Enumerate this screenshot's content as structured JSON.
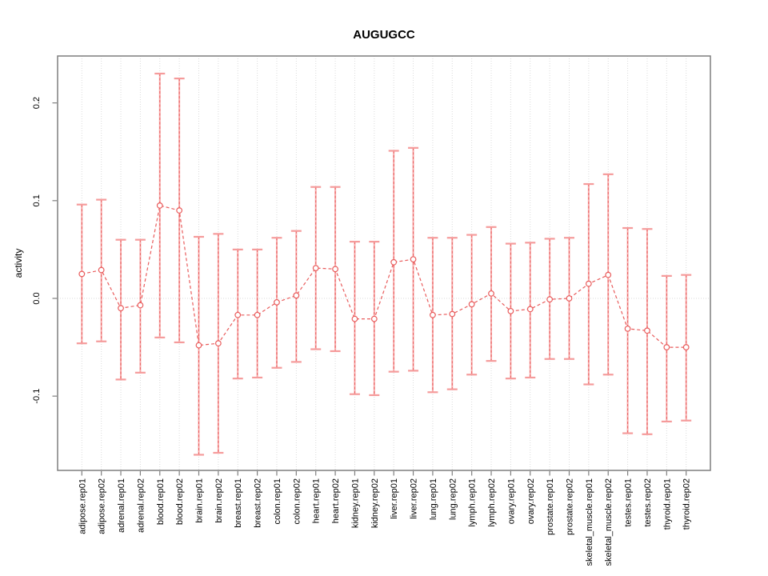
{
  "chart_data": {
    "type": "line",
    "title": "AUGUGCC",
    "xlabel": "",
    "ylabel": "activity",
    "categories": [
      "adipose.rep01",
      "adipose.rep02",
      "adrenal.rep01",
      "adrenal.rep02",
      "blood.rep01",
      "blood.rep02",
      "brain.rep01",
      "brain.rep02",
      "breast.rep01",
      "breast.rep02",
      "colon.rep01",
      "colon.rep02",
      "heart.rep01",
      "heart.rep02",
      "kidney.rep01",
      "kidney.rep02",
      "liver.rep01",
      "liver.rep02",
      "lung.rep01",
      "lung.rep02",
      "lymph.rep01",
      "lymph.rep02",
      "ovary.rep01",
      "ovary.rep02",
      "prostate.rep01",
      "prostate.rep02",
      "skeletal_muscle.rep01",
      "skeletal_muscle.rep02",
      "testes.rep01",
      "testes.rep02",
      "thyroid.rep01",
      "thyroid.rep02"
    ],
    "series": [
      {
        "name": "activity",
        "values": [
          0.025,
          0.029,
          -0.01,
          -0.007,
          0.095,
          0.09,
          -0.048,
          -0.046,
          -0.017,
          -0.017,
          -0.004,
          0.003,
          0.031,
          0.03,
          -0.021,
          -0.021,
          0.037,
          0.04,
          -0.017,
          -0.016,
          -0.006,
          0.005,
          -0.013,
          -0.011,
          -0.001,
          0.0,
          0.015,
          0.024,
          -0.031,
          -0.033,
          -0.05,
          -0.05
        ],
        "lower": [
          -0.046,
          -0.044,
          -0.083,
          -0.076,
          -0.04,
          -0.045,
          -0.16,
          -0.158,
          -0.082,
          -0.081,
          -0.071,
          -0.065,
          -0.052,
          -0.054,
          -0.098,
          -0.099,
          -0.075,
          -0.074,
          -0.096,
          -0.093,
          -0.078,
          -0.064,
          -0.082,
          -0.081,
          -0.062,
          -0.062,
          -0.088,
          -0.078,
          -0.138,
          -0.139,
          -0.126,
          -0.125
        ],
        "upper": [
          0.096,
          0.101,
          0.06,
          0.06,
          0.23,
          0.225,
          0.063,
          0.066,
          0.05,
          0.05,
          0.062,
          0.069,
          0.114,
          0.114,
          0.058,
          0.058,
          0.151,
          0.154,
          0.062,
          0.062,
          0.065,
          0.073,
          0.056,
          0.057,
          0.061,
          0.062,
          0.117,
          0.127,
          0.072,
          0.071,
          0.023,
          0.024
        ]
      }
    ],
    "ylim": [
      -0.176,
      0.248
    ],
    "yticks": [
      -0.1,
      0.0,
      0.1,
      0.2
    ],
    "legend": "none",
    "marker": "open-circle",
    "line_style": "dashed",
    "grid": {
      "vertical_dotted_per_category": true,
      "zero_line_dotted": true
    },
    "colors": {
      "series": "#E95C5C",
      "error_bar_fill": "#F7ABAB",
      "error_bar_cap": "#F59B9B",
      "grid": "#DADADA",
      "frame": "#7F7F7F",
      "text": "#000000",
      "marker_fill": "#FFFFFF"
    }
  }
}
